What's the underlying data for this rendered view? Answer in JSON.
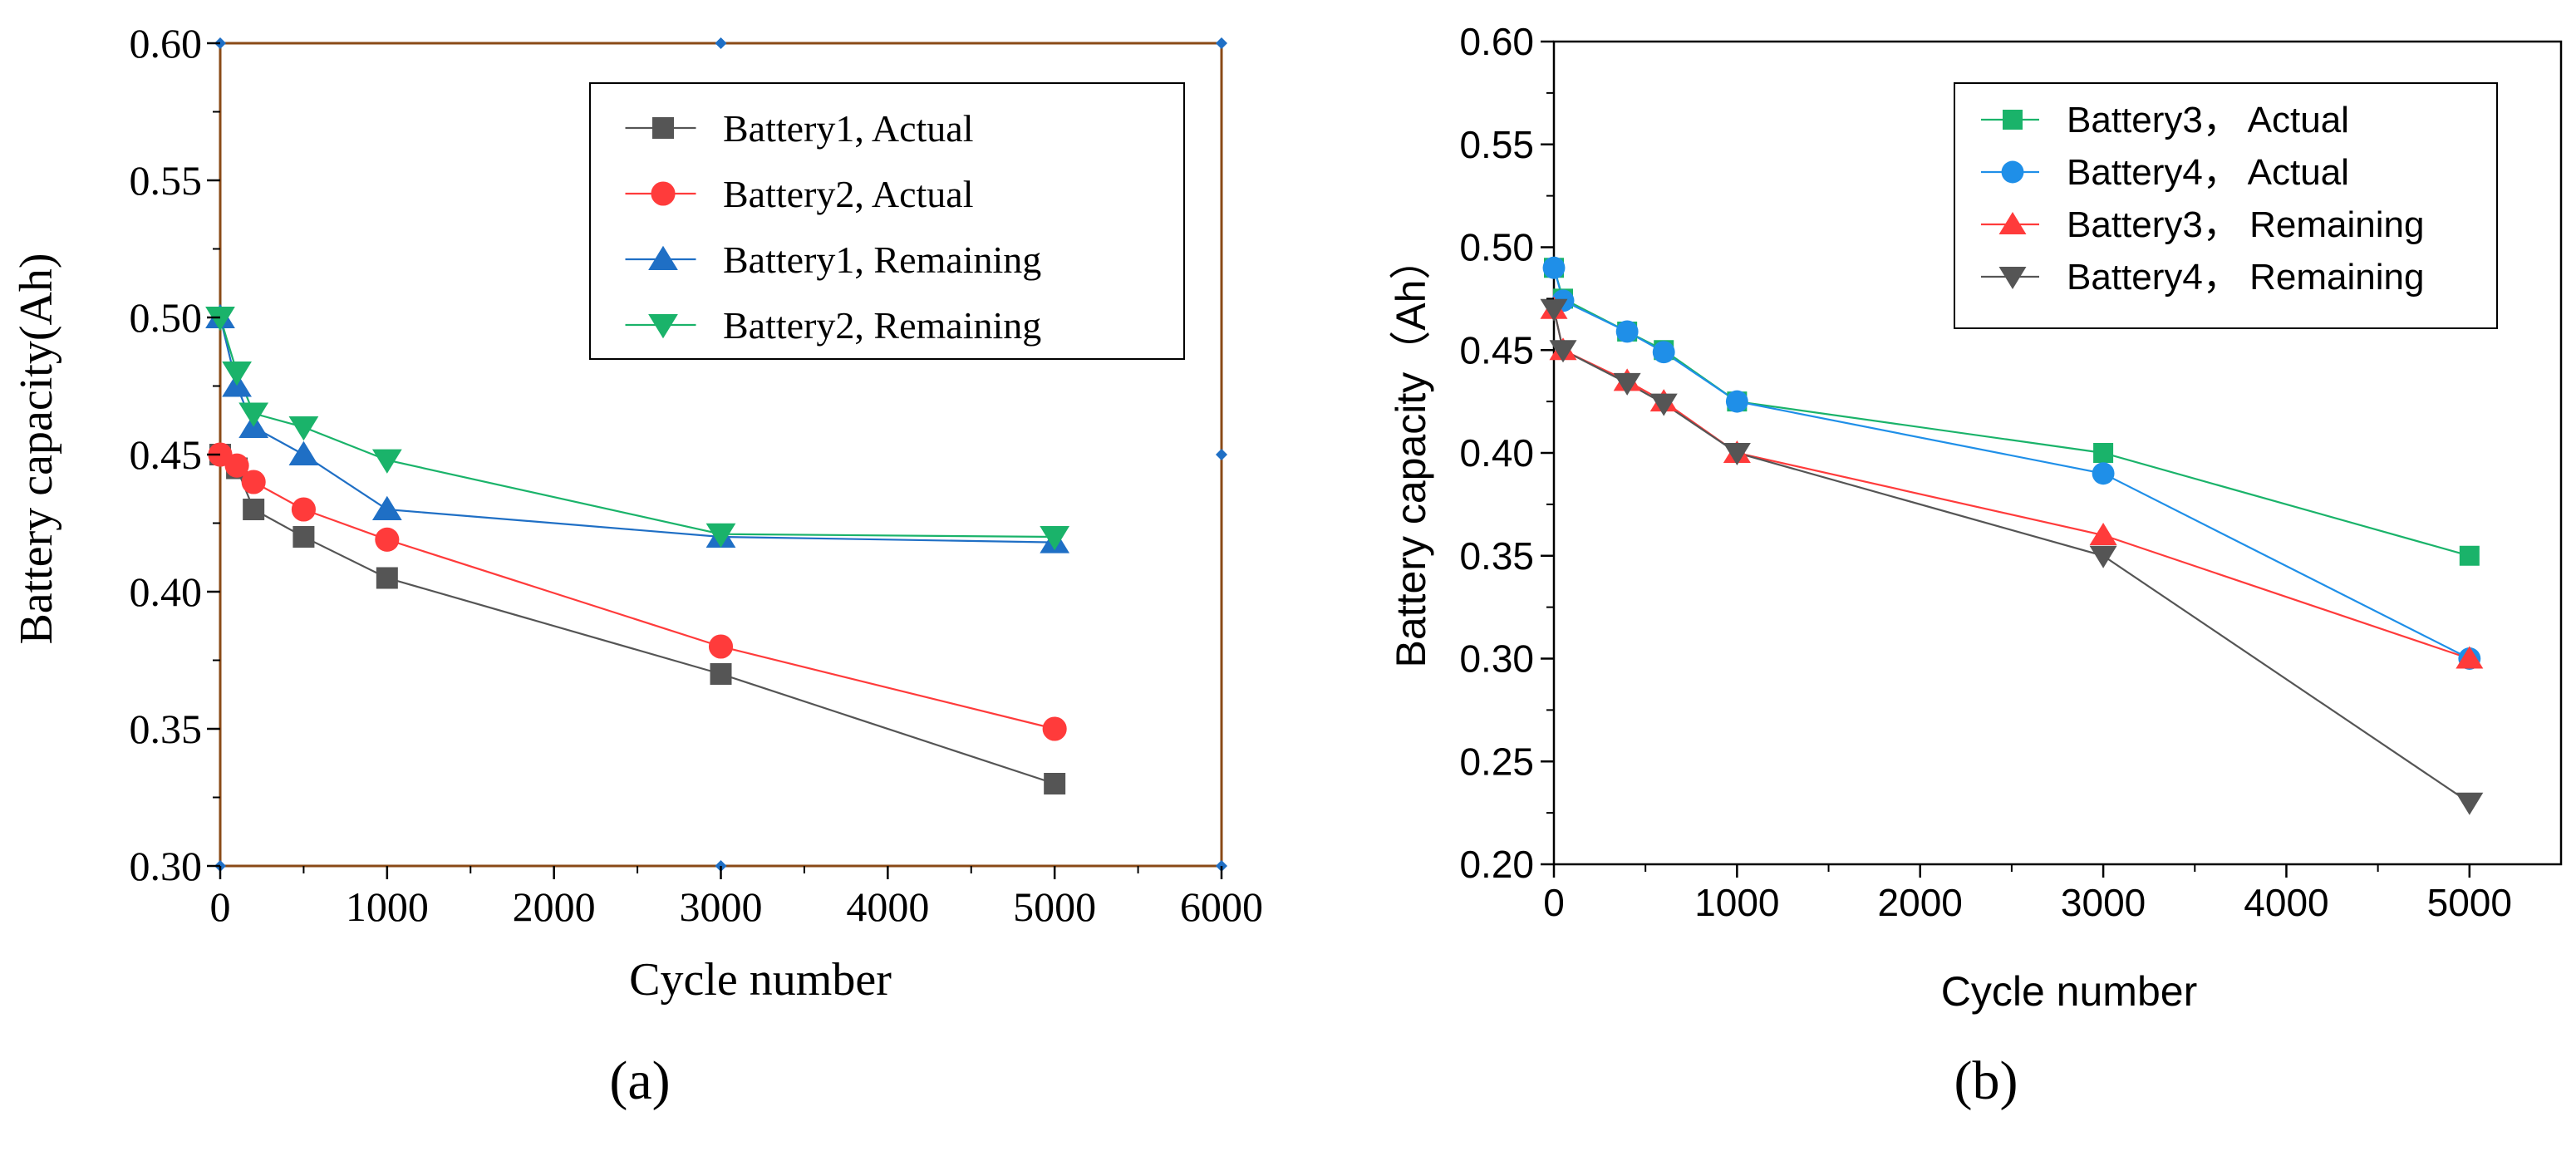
{
  "chart_data": [
    {
      "type": "line",
      "panel_label": "(a)",
      "xlabel": "Cycle number",
      "ylabel": "Battery capacity(Ah)",
      "xlim": [
        0,
        6000
      ],
      "ylim": [
        0.3,
        0.6
      ],
      "xticks": [
        "0",
        "1000",
        "2000",
        "3000",
        "4000",
        "5000",
        "6000"
      ],
      "yticks": [
        "0.30",
        "0.35",
        "0.40",
        "0.45",
        "0.50",
        "0.55",
        "0.60"
      ],
      "legend_position": "top-right",
      "series": [
        {
          "name": "Battery1, Actual",
          "color": "#555555",
          "marker": "square",
          "x": [
            0,
            100,
            200,
            500,
            1000,
            3000,
            5000
          ],
          "y": [
            0.45,
            0.445,
            0.43,
            0.42,
            0.405,
            0.37,
            0.33
          ]
        },
        {
          "name": "Battery2, Actual",
          "color": "#ff3b3b",
          "marker": "circle",
          "x": [
            0,
            100,
            200,
            500,
            1000,
            3000,
            5000
          ],
          "y": [
            0.45,
            0.446,
            0.44,
            0.43,
            0.419,
            0.38,
            0.35
          ]
        },
        {
          "name": "Battery1, Remaining",
          "color": "#1f6fc5",
          "marker": "triangle-up",
          "x": [
            0,
            100,
            200,
            500,
            1000,
            3000,
            5000
          ],
          "y": [
            0.5,
            0.475,
            0.46,
            0.45,
            0.43,
            0.42,
            0.418
          ]
        },
        {
          "name": "Battery2, Remaining",
          "color": "#1ab36a",
          "marker": "triangle-down",
          "x": [
            0,
            100,
            200,
            500,
            1000,
            3000,
            5000
          ],
          "y": [
            0.5,
            0.48,
            0.465,
            0.46,
            0.448,
            0.421,
            0.42
          ]
        }
      ]
    },
    {
      "type": "line",
      "panel_label": "(b)",
      "xlabel": "Cycle number",
      "ylabel": "Battery capacity（Ah）",
      "xlim": [
        0,
        5500
      ],
      "ylim": [
        0.2,
        0.6
      ],
      "xticks": [
        "0",
        "1000",
        "2000",
        "3000",
        "4000",
        "5000"
      ],
      "yticks": [
        "0.20",
        "0.25",
        "0.30",
        "0.35",
        "0.40",
        "0.45",
        "0.50",
        "0.55",
        "0.60"
      ],
      "legend_position": "top-right",
      "series": [
        {
          "name": "Battery3， Actual",
          "color": "#1ab36a",
          "marker": "square",
          "x": [
            0,
            50,
            400,
            600,
            1000,
            3000,
            5000
          ],
          "y": [
            0.49,
            0.475,
            0.459,
            0.45,
            0.425,
            0.4,
            0.35
          ]
        },
        {
          "name": "Battery4， Actual",
          "color": "#1f8fe8",
          "marker": "circle",
          "x": [
            0,
            50,
            400,
            600,
            1000,
            3000,
            5000
          ],
          "y": [
            0.49,
            0.474,
            0.459,
            0.449,
            0.425,
            0.39,
            0.3
          ]
        },
        {
          "name": "Battery3， Remaining",
          "color": "#ff3b3b",
          "marker": "triangle-up",
          "x": [
            0,
            50,
            400,
            600,
            1000,
            3000,
            5000
          ],
          "y": [
            0.47,
            0.45,
            0.435,
            0.425,
            0.4,
            0.36,
            0.3
          ]
        },
        {
          "name": "Battery4， Remaining",
          "color": "#555555",
          "marker": "triangle-down",
          "x": [
            0,
            50,
            400,
            600,
            1000,
            3000,
            5000
          ],
          "y": [
            0.47,
            0.45,
            0.434,
            0.424,
            0.4,
            0.35,
            0.23
          ]
        }
      ]
    }
  ]
}
